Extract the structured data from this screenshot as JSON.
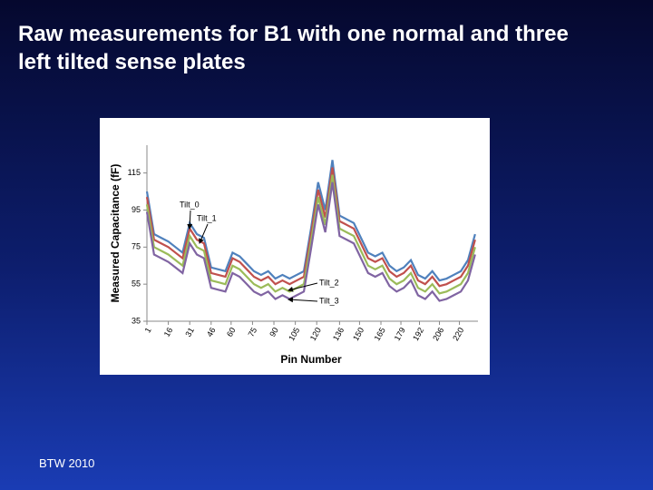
{
  "title": "Raw measurements for B1 with one normal and three  left tilted sense plates",
  "footer": "BTW 2010",
  "chart_data": {
    "type": "line",
    "y_label": "Measured Capacitance (fF)",
    "x_label": "Pin Number",
    "x": [
      1,
      6,
      11,
      16,
      21,
      26,
      31,
      36,
      41,
      46,
      51,
      56,
      61,
      66,
      71,
      76,
      81,
      86,
      91,
      96,
      101,
      106,
      111,
      116,
      121,
      126,
      131,
      136,
      141,
      146,
      151,
      156,
      161,
      166,
      171,
      176,
      181,
      186,
      191,
      196,
      201,
      206,
      211,
      216,
      221,
      226,
      231
    ],
    "series": [
      {
        "name": "Tilt_0",
        "color": "#4f81bd",
        "values": [
          105,
          82,
          80,
          78,
          75,
          72,
          88,
          82,
          80,
          64,
          63,
          62,
          72,
          70,
          66,
          62,
          60,
          62,
          58,
          60,
          58,
          60,
          62,
          85,
          110,
          95,
          122,
          92,
          90,
          88,
          80,
          72,
          70,
          72,
          65,
          62,
          64,
          68,
          60,
          58,
          62,
          57,
          58,
          60,
          62,
          68,
          82
        ]
      },
      {
        "name": "Tilt_1",
        "color": "#c0504d",
        "values": [
          102,
          79,
          77,
          75,
          72,
          69,
          85,
          79,
          77,
          61,
          60,
          59,
          69,
          67,
          63,
          59,
          57,
          59,
          55,
          57,
          55,
          57,
          59,
          82,
          106,
          91,
          118,
          89,
          87,
          85,
          77,
          69,
          67,
          69,
          62,
          59,
          61,
          65,
          57,
          55,
          59,
          54,
          55,
          57,
          59,
          65,
          79
        ]
      },
      {
        "name": "Tilt_2",
        "color": "#9bbb59",
        "values": [
          98,
          75,
          73,
          71,
          68,
          65,
          81,
          75,
          73,
          57,
          56,
          55,
          65,
          63,
          59,
          55,
          53,
          55,
          51,
          53,
          51,
          53,
          55,
          78,
          102,
          87,
          114,
          85,
          83,
          81,
          73,
          65,
          63,
          65,
          58,
          55,
          57,
          61,
          53,
          51,
          55,
          50,
          51,
          53,
          55,
          61,
          75
        ]
      },
      {
        "name": "Tilt_3",
        "color": "#8064a2",
        "values": [
          94,
          71,
          69,
          67,
          64,
          61,
          77,
          71,
          69,
          53,
          52,
          51,
          61,
          59,
          55,
          51,
          49,
          51,
          47,
          49,
          47,
          49,
          51,
          74,
          98,
          83,
          110,
          81,
          79,
          77,
          69,
          61,
          59,
          61,
          54,
          51,
          53,
          57,
          49,
          47,
          51,
          46,
          47,
          49,
          51,
          57,
          71
        ]
      }
    ],
    "xlim": [
      1,
      233
    ],
    "xticks": [
      1,
      16,
      31,
      46,
      60,
      75,
      90,
      105,
      120,
      136,
      150,
      165,
      179,
      192,
      206,
      220
    ],
    "ylim": [
      35,
      130
    ],
    "yticks": [
      35,
      55,
      75,
      95,
      115
    ]
  }
}
